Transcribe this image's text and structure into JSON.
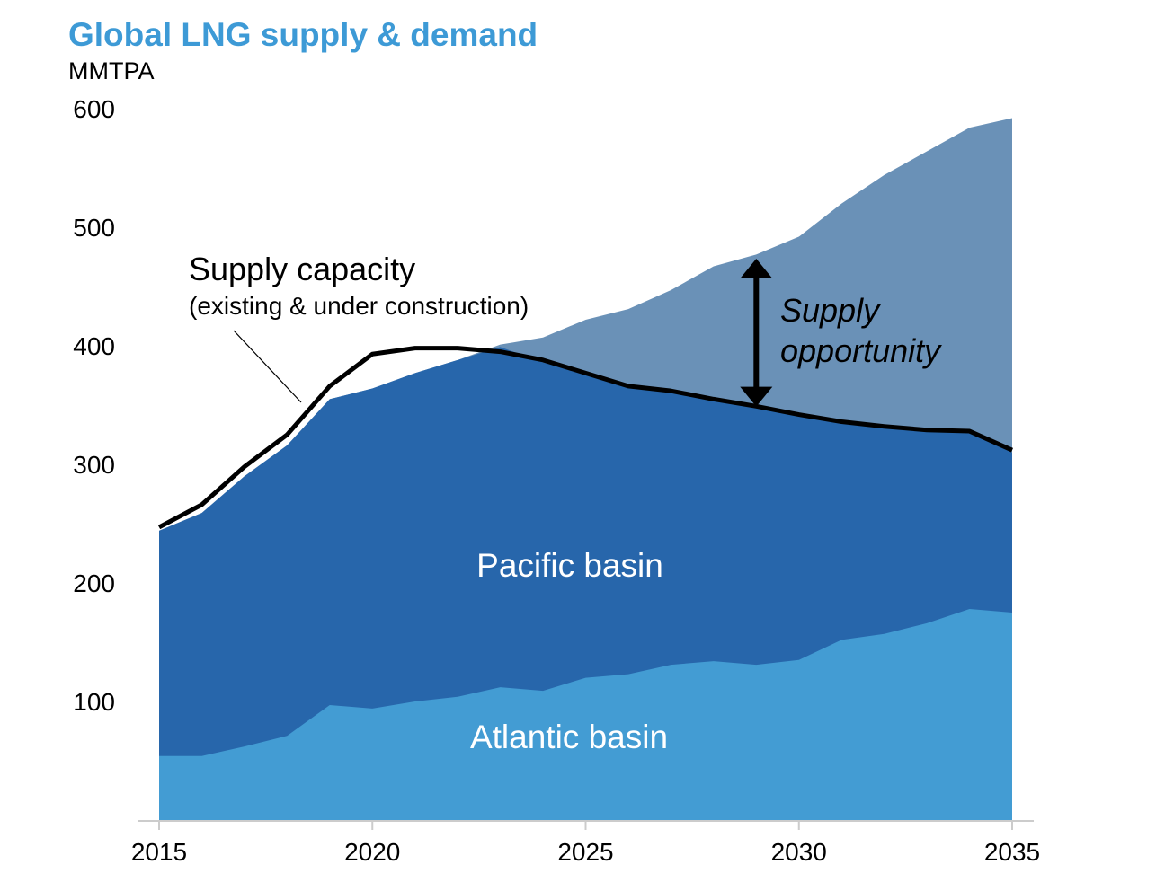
{
  "colors": {
    "title": "#3d9ad6",
    "atlantic": "#439cd3",
    "pacific": "#2766ab",
    "opportunity": "#6a91b7",
    "supply_line": "#000000",
    "axis": "#cccccc"
  },
  "chart_data": {
    "type": "area",
    "title": "Global LNG supply & demand",
    "ylabel": "MMTPA",
    "xlabel": "",
    "ylim": [
      0,
      600
    ],
    "xlim": [
      2015,
      2035
    ],
    "yticks": [
      "100",
      "200",
      "300",
      "400",
      "500",
      "600"
    ],
    "xticks": [
      "2015",
      "2020",
      "2025",
      "2030",
      "2035"
    ],
    "x": [
      2015,
      2016,
      2017,
      2018,
      2019,
      2020,
      2021,
      2022,
      2023,
      2024,
      2025,
      2026,
      2027,
      2028,
      2029,
      2030,
      2031,
      2032,
      2033,
      2034,
      2035
    ],
    "series": [
      {
        "name": "Atlantic basin",
        "values": [
          54,
          54,
          62,
          71,
          97,
          94,
          100,
          104,
          112,
          109,
          120,
          123,
          131,
          134,
          131,
          135,
          152,
          157,
          166,
          178,
          175
        ]
      },
      {
        "name": "Pacific basin",
        "values": [
          244,
          259,
          290,
          316,
          355,
          364,
          377,
          388,
          399,
          386,
          377,
          366,
          361,
          355,
          349,
          342,
          336,
          332,
          329,
          328,
          310
        ]
      },
      {
        "name": "Supply opportunity",
        "values": [
          244,
          259,
          290,
          316,
          355,
          364,
          377,
          388,
          401,
          407,
          422,
          431,
          447,
          467,
          477,
          492,
          520,
          544,
          564,
          584,
          592
        ]
      }
    ],
    "supply_line": {
      "name": "Supply capacity",
      "values": [
        247,
        266,
        298,
        325,
        366,
        393,
        398,
        398,
        395,
        388,
        377,
        366,
        362,
        355,
        349,
        342,
        336,
        332,
        329,
        328,
        312
      ]
    },
    "annotations": {
      "supply_capacity": "Supply capacity",
      "supply_capacity_sub": "(existing & under construction)",
      "opportunity_line1": "Supply",
      "opportunity_line2": "opportunity",
      "opportunity_arrow_x": 2029,
      "opportunity_arrow_range": [
        348,
        478
      ],
      "pacific_label": "Pacific basin",
      "atlantic_label": "Atlantic basin"
    }
  }
}
